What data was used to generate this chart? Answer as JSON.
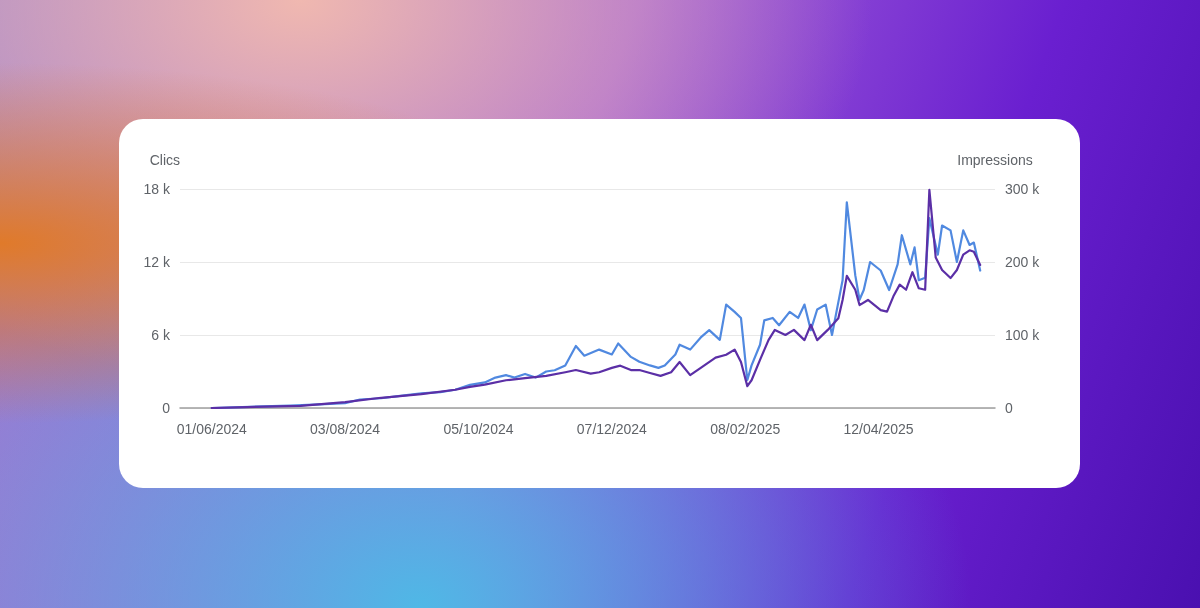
{
  "chart_data": {
    "type": "line",
    "ylabel": "Clics",
    "y2label": "Impressions",
    "xlim": [
      "2024-05-17",
      "2025-06-06"
    ],
    "xticks": [
      {
        "value": "2024-06-01",
        "label": "01/06/2024"
      },
      {
        "value": "2024-08-03",
        "label": "03/08/2024"
      },
      {
        "value": "2024-10-05",
        "label": "05/10/2024"
      },
      {
        "value": "2024-12-07",
        "label": "07/12/2024"
      },
      {
        "value": "2025-02-08",
        "label": "08/02/2025"
      },
      {
        "value": "2025-04-12",
        "label": "12/04/2025"
      }
    ],
    "ylim": [
      0,
      18000
    ],
    "yticks": [
      {
        "value": 0,
        "label": "0"
      },
      {
        "value": 6000,
        "label": "6 k"
      },
      {
        "value": 12000,
        "label": "12 k"
      },
      {
        "value": 18000,
        "label": "18 k"
      }
    ],
    "y2lim": [
      0,
      300000
    ],
    "y2ticks": [
      {
        "value": 0,
        "label": "0"
      },
      {
        "value": 100000,
        "label": "100 k"
      },
      {
        "value": 200000,
        "label": "200 k"
      },
      {
        "value": 300000,
        "label": "300 k"
      }
    ],
    "grid": "y",
    "marker": "none",
    "line_style": "solid",
    "series": [
      {
        "color": "#5089e0",
        "x": [
          "2024-06-01",
          "2024-06-19",
          "2024-07-08",
          "2024-07-22",
          "2024-08-03",
          "2024-08-10",
          "2024-08-20",
          "2024-08-29",
          "2024-09-08",
          "2024-09-17",
          "2024-09-24",
          "2024-10-01",
          "2024-10-08",
          "2024-10-13",
          "2024-10-18",
          "2024-10-22",
          "2024-10-27",
          "2024-11-01",
          "2024-11-06",
          "2024-11-10",
          "2024-11-15",
          "2024-11-20",
          "2024-11-24",
          "2024-12-01",
          "2024-12-07",
          "2024-12-10",
          "2024-12-16",
          "2024-12-20",
          "2024-12-25",
          "2024-12-29",
          "2025-01-01",
          "2025-01-06",
          "2025-01-08",
          "2025-01-13",
          "2025-01-18",
          "2025-01-22",
          "2025-01-27",
          "2025-01-30",
          "2025-02-03",
          "2025-02-06",
          "2025-02-09",
          "2025-02-11",
          "2025-02-15",
          "2025-02-17",
          "2025-02-21",
          "2025-02-24",
          "2025-03-01",
          "2025-03-05",
          "2025-03-08",
          "2025-03-11",
          "2025-03-14",
          "2025-03-18",
          "2025-03-21",
          "2025-03-24",
          "2025-03-26",
          "2025-03-28",
          "2025-04-01",
          "2025-04-03",
          "2025-04-05",
          "2025-04-08",
          "2025-04-13",
          "2025-04-17",
          "2025-04-21",
          "2025-04-23",
          "2025-04-27",
          "2025-04-29",
          "2025-05-01",
          "2025-05-04",
          "2025-05-06",
          "2025-05-10",
          "2025-05-12",
          "2025-05-16",
          "2025-05-19",
          "2025-05-22",
          "2025-05-25",
          "2025-05-27",
          "2025-05-30"
        ],
        "values": [
          0,
          100,
          200,
          300,
          400,
          700,
          800,
          1000,
          1200,
          1300,
          1500,
          1900,
          2100,
          2500,
          2700,
          2500,
          2800,
          2500,
          3000,
          3100,
          3500,
          5100,
          4300,
          4800,
          4400,
          5300,
          4200,
          3800,
          3500,
          3300,
          3500,
          4400,
          5200,
          4800,
          5800,
          6400,
          5600,
          8500,
          7900,
          7400,
          2300,
          3500,
          5200,
          7200,
          7400,
          6800,
          7900,
          7400,
          8500,
          6400,
          8100,
          8500,
          6000,
          8700,
          10500,
          16900,
          10900,
          8900,
          9700,
          12000,
          11300,
          9700,
          11800,
          14200,
          11800,
          13200,
          10500,
          10700,
          15600,
          12600,
          15000,
          14600,
          12000,
          14600,
          13400,
          13600,
          11300
        ]
      },
      {
        "color": "#5b2fa6",
        "axis": "y2",
        "x": [
          "2024-06-01",
          "2024-07-13",
          "2024-08-03",
          "2024-08-20",
          "2024-09-08",
          "2024-09-24",
          "2024-10-01",
          "2024-10-08",
          "2024-10-18",
          "2024-10-27",
          "2024-11-06",
          "2024-11-15",
          "2024-11-20",
          "2024-11-27",
          "2024-12-01",
          "2024-12-07",
          "2024-12-11",
          "2024-12-16",
          "2024-12-20",
          "2024-12-25",
          "2024-12-30",
          "2025-01-04",
          "2025-01-08",
          "2025-01-13",
          "2025-01-18",
          "2025-01-25",
          "2025-01-30",
          "2025-02-03",
          "2025-02-06",
          "2025-02-09",
          "2025-02-11",
          "2025-02-15",
          "2025-02-19",
          "2025-02-22",
          "2025-02-27",
          "2025-03-03",
          "2025-03-08",
          "2025-03-11",
          "2025-03-14",
          "2025-03-19",
          "2025-03-24",
          "2025-03-26",
          "2025-03-28",
          "2025-04-01",
          "2025-04-03",
          "2025-04-07",
          "2025-04-13",
          "2025-04-16",
          "2025-04-19",
          "2025-04-22",
          "2025-04-25",
          "2025-04-28",
          "2025-05-01",
          "2025-05-04",
          "2025-05-06",
          "2025-05-09",
          "2025-05-12",
          "2025-05-16",
          "2025-05-19",
          "2025-05-22",
          "2025-05-25",
          "2025-05-27",
          "2025-05-30"
        ],
        "values": [
          0,
          3000,
          8000,
          14000,
          19000,
          25000,
          29000,
          32000,
          38000,
          41000,
          44000,
          49000,
          52000,
          47000,
          49000,
          55000,
          58000,
          52000,
          52000,
          48000,
          44000,
          49000,
          63000,
          45000,
          55000,
          69000,
          73000,
          80000,
          63000,
          30000,
          38000,
          66000,
          93000,
          107000,
          100000,
          107000,
          93000,
          114000,
          93000,
          107000,
          123000,
          148000,
          181000,
          162000,
          141000,
          148000,
          134000,
          132000,
          153000,
          169000,
          162000,
          186000,
          164000,
          162000,
          299000,
          206000,
          189000,
          178000,
          189000,
          210000,
          216000,
          214000,
          196000
        ]
      }
    ]
  }
}
